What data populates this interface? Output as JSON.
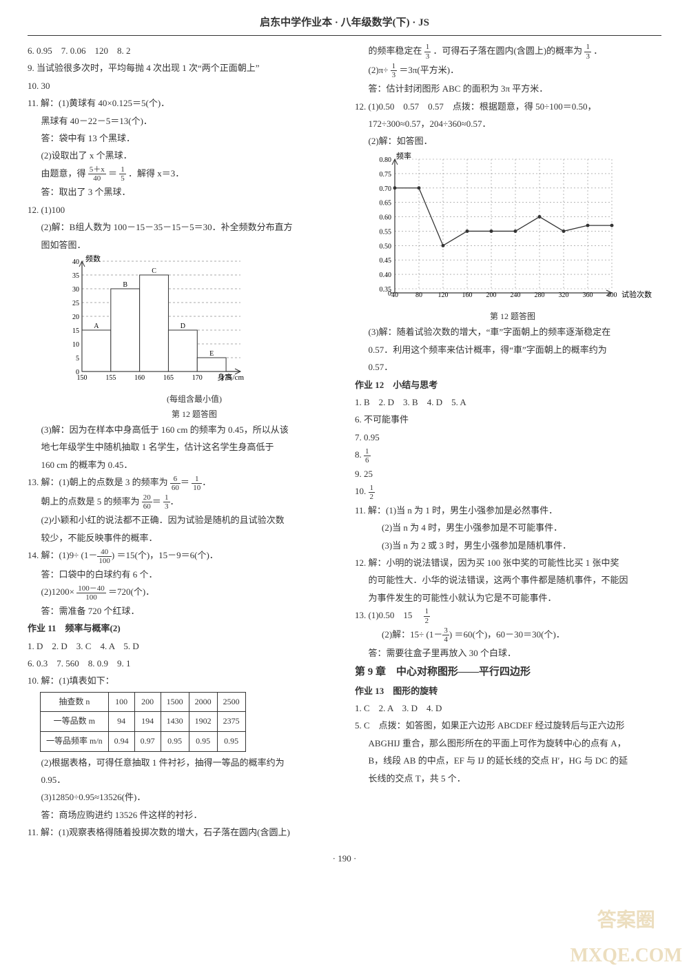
{
  "header": "启东中学作业本 · 八年级数学(下) · JS",
  "left": {
    "l1": "6. 0.95　7. 0.06　120　8. 2",
    "l2": "9. 当试验很多次时，平均每抛 4 次出现 1 次“两个正面朝上”",
    "l3": "10. 30",
    "l4": "11. 解：(1)黄球有 40×0.125＝5(个)．",
    "l5": "黑球有 40－22－5＝13(个)．",
    "l6": "答：袋中有 13 个黑球．",
    "l7": "(2)设取出了 x 个黑球．",
    "l8a": "由题意，得",
    "l8b": "＝",
    "l8c": "．解得 x＝3．",
    "fr1_num": "5＋x",
    "fr1_den": "40",
    "fr2_num": "1",
    "fr2_den": "5",
    "l9": "答：取出了 3 个黑球．",
    "l10": "12. (1)100",
    "l11": "(2)解：B组人数为 100－15－35－15－5＝30．补全频数分布直方",
    "l12": "图如答图．",
    "hist": {
      "ylabel": "频数",
      "xlabel": "身高/cm",
      "xticks": [
        "150",
        "155",
        "160",
        "165",
        "170",
        "175"
      ],
      "yticks": [
        "0",
        "5",
        "10",
        "15",
        "20",
        "25",
        "30",
        "35",
        "40"
      ],
      "bars": [
        15,
        30,
        35,
        15,
        5
      ],
      "labels": [
        "A",
        "B",
        "C",
        "D",
        "E"
      ],
      "note": "(每组含最小值)",
      "caption": "第 12 题答图",
      "bar_color": "#ffffff",
      "border": "#333",
      "grid": "#555"
    },
    "l13": "(3)解：因为在样本中身高低于 160 cm 的频率为 0.45，所以从该",
    "l14": "地七年级学生中随机抽取 1 名学生，估计这名学生身高低于",
    "l15": "160 cm 的概率为 0.45．",
    "l16a": "13. 解：(1)朝上的点数是 3 的频率为",
    "fr3_num": "6",
    "fr3_den": "60",
    "fr3b_num": "1",
    "fr3b_den": "10",
    "l17a": "朝上的点数是 5 的频率为",
    "fr4_num": "20",
    "fr4_den": "60",
    "fr4b_num": "1",
    "fr4b_den": "3",
    "l18": "(2)小颖和小红的说法都不正确．因为试验是随机的且试验次数",
    "l19": "较少，不能反映事件的概率．",
    "l20a": "14. 解：(1)9÷",
    "l20b": "＝15(个)，15－9＝6(个)．",
    "fr5_pre": "(1－",
    "fr5_num": "40",
    "fr5_den": "100",
    "fr5_post": ")",
    "l21": "答：口袋中的白球约有 6 个．",
    "l22a": "(2)1200×",
    "fr6_num": "100－40",
    "fr6_den": "100",
    "l22b": "＝720(个)．",
    "l23": "答：需准备 720 个红球．",
    "sec11": "作业 11　频率与概率(2)",
    "l24": "1. D　2. D　3. C　4. A　5. D",
    "l25": "6. 0.3　7. 560　8. 0.9　9. 1",
    "l26": "10. 解：(1)填表如下：",
    "table": {
      "r1": [
        "抽查数 n",
        "100",
        "200",
        "1500",
        "2000",
        "2500"
      ],
      "r2": [
        "一等品数 m",
        "94",
        "194",
        "1430",
        "1902",
        "2375"
      ],
      "r3": [
        "一等品频率 m/n",
        "0.94",
        "0.97",
        "0.95",
        "0.95",
        "0.95"
      ]
    },
    "l27": "(2)根据表格，可得任意抽取 1 件衬衫，抽得一等品的概率约为",
    "l28": "0.95．",
    "l29": "(3)12850÷0.95≈13526(件)．",
    "l30": "答：商场应购进约 13526 件这样的衬衫．",
    "l31": "11. 解：(1)观察表格得随着投掷次数的增大，石子落在圆内(含圆上)"
  },
  "right": {
    "r1a": "的频率稳定在",
    "fr7_num": "1",
    "fr7_den": "3",
    "r1b": "．可得石子落在圆内(含圆上)的概率为",
    "r1c": "．",
    "r2a": "(2)π÷",
    "fr8_num": "1",
    "fr8_den": "3",
    "r2b": "＝3π(平方米)．",
    "r3": "答：估计封闭图形 ABC 的面积为 3π 平方米．",
    "r4": "12. (1)0.50　0.57　0.57　点拨：根据题意，得 50÷100＝0.50，",
    "r5": "172÷300≈0.57，204÷360≈0.57．",
    "r6": "(2)解：如答图．",
    "linechart": {
      "ylabel": "频率",
      "xlabel": "试验次数",
      "xticks": [
        "40",
        "80",
        "120",
        "160",
        "200",
        "240",
        "280",
        "320",
        "360",
        "400"
      ],
      "yticks": [
        "0",
        "0.35",
        "0.40",
        "0.45",
        "0.50",
        "0.55",
        "0.60",
        "0.65",
        "0.70",
        "0.75",
        "0.80"
      ],
      "points": [
        [
          40,
          0.7
        ],
        [
          80,
          0.7
        ],
        [
          120,
          0.5
        ],
        [
          160,
          0.55
        ],
        [
          200,
          0.55
        ],
        [
          240,
          0.55
        ],
        [
          280,
          0.6
        ],
        [
          320,
          0.55
        ],
        [
          360,
          0.57
        ],
        [
          400,
          0.57
        ]
      ],
      "caption": "第 12 题答图",
      "line_color": "#333",
      "grid": "#888"
    },
    "r7": "(3)解：随着试验次数的增大，“車”字面朝上的频率逐渐稳定在",
    "r8": "0.57．利用这个频率来估计概率，得“車”字面朝上的概率约为",
    "r9": "0.57．",
    "sec12": "作业 12　小结与思考",
    "r10": "1. B　2. D　3. B　4. D　5. A",
    "r11": "6. 不可能事件",
    "r12": "7. 0.95",
    "r13a": "8. ",
    "fr9_num": "1",
    "fr9_den": "6",
    "r14": "9. 25",
    "r15a": "10. ",
    "fr10_num": "1",
    "fr10_den": "2",
    "r16": "11. 解：(1)当 n 为 1 时，男生小强参加是必然事件．",
    "r17": "(2)当 n 为 4 时，男生小强参加是不可能事件．",
    "r18": "(3)当 n 为 2 或 3 时，男生小强参加是随机事件．",
    "r19": "12. 解：小明的说法错误，因为买 100 张中奖的可能性比买 1 张中奖",
    "r20": "的可能性大．小华的说法错误，这两个事件都是随机事件，不能因",
    "r21": "为事件发生的可能性小就认为它是不可能事件．",
    "r22a": "13. (1)0.50　15　",
    "fr11_num": "1",
    "fr11_den": "2",
    "r23a": "(2)解：15÷",
    "fr12_pre": "(1－",
    "fr12_num": "3",
    "fr12_den": "4",
    "fr12_post": ")",
    "r23b": "＝60(个)，60－30＝30(个)．",
    "r24": "答：需要往盒子里再放入 30 个白球．",
    "chapter": "第 9 章　中心对称图形——平行四边形",
    "sec13": "作业 13　图形的旋转",
    "r25": "1. C　2. A　3. D　4. D",
    "r26": "5. C　点拨：如答图，如果正六边形 ABCDEF 经过旋转后与正六边形",
    "r27": "ABGHIJ 重合，那么图形所在的平面上可作为旋转中心的点有 A，",
    "r28": "B，线段 AB 的中点，EF 与 IJ 的延长线的交点 H′，HG 与 DC 的延",
    "r29": "长线的交点 T，共 5 个．"
  },
  "pagenum": "· 190 ·",
  "watermark": "答案圈\nMXQE.COM"
}
